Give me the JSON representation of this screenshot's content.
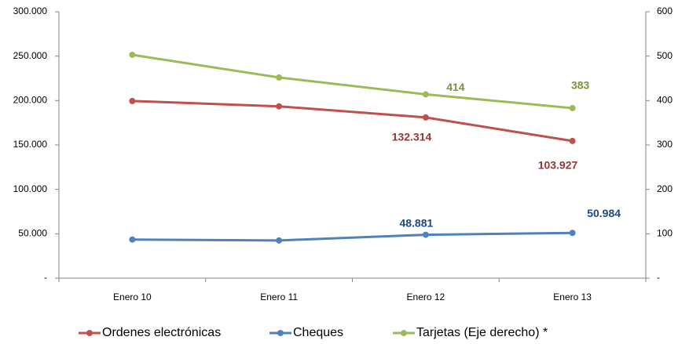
{
  "chart_data": {
    "type": "line",
    "categories": [
      "Enero 10",
      "Enero 11",
      "Enero 12",
      "Enero 13"
    ],
    "series": [
      {
        "name": "Ordenes electrónicas",
        "color": "#c0504d",
        "label_color": "#953735",
        "values": [
          199500,
          193500,
          181000,
          154500
        ]
      },
      {
        "name": "Cheques",
        "color": "#4f81bd",
        "label_color": "#1f497d",
        "values": [
          43500,
          42500,
          48881,
          50984
        ],
        "value_labels": [
          null,
          null,
          "48.881",
          "50.984"
        ]
      },
      {
        "name": "Tarjetas (Eje derecho) *",
        "color": "#9bbb59",
        "label_color": "#77933c",
        "axis": "y2",
        "values": [
          503,
          452,
          414,
          383
        ],
        "value_labels": [
          null,
          null,
          "414",
          "383"
        ]
      }
    ],
    "annotations": [
      "132.314",
      "103.927"
    ],
    "ylim": [
      0,
      300000
    ],
    "yticks": [
      {
        "value": 0,
        "label": "-"
      },
      {
        "value": 50000,
        "label": "50.000"
      },
      {
        "value": 100000,
        "label": "100.000"
      },
      {
        "value": 150000,
        "label": "150.000"
      },
      {
        "value": 200000,
        "label": "200.000"
      },
      {
        "value": 250000,
        "label": "250.000"
      },
      {
        "value": 300000,
        "label": "300.000"
      }
    ],
    "y2lim": [
      0,
      600
    ],
    "y2ticks": [
      {
        "value": 0,
        "label": "-"
      },
      100,
      200,
      300,
      400,
      500,
      600
    ],
    "legend": "bottom"
  }
}
